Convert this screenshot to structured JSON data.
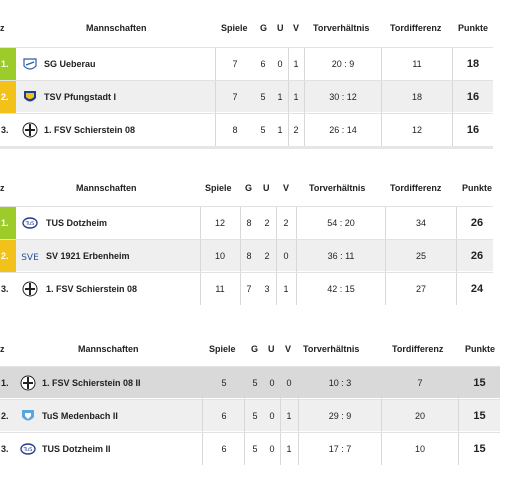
{
  "tables": [
    {
      "headers": {
        "rank": "z",
        "team": "Mannschaften",
        "games": "Spiele",
        "g": "G",
        "u": "U",
        "v": "V",
        "goals": "Torverhältnis",
        "diff": "Tordifferenz",
        "points": "Punkte"
      },
      "rows": [
        {
          "rank": "1.",
          "team": "SG Ueberau",
          "games": "7",
          "g": "6",
          "u": "0",
          "v": "1",
          "goals": "20 : 9",
          "diff": "11",
          "points": "18"
        },
        {
          "rank": "2.",
          "team": "TSV Pfungstadt I",
          "games": "7",
          "g": "5",
          "u": "1",
          "v": "1",
          "goals": "30 : 12",
          "diff": "18",
          "points": "16"
        },
        {
          "rank": "3.",
          "team": "1. FSV Schierstein 08",
          "games": "8",
          "g": "5",
          "u": "1",
          "v": "2",
          "goals": "26 : 14",
          "diff": "12",
          "points": "16"
        }
      ]
    },
    {
      "headers": {
        "rank": "z",
        "team": "Mannschaften",
        "games": "Spiele",
        "g": "G",
        "u": "U",
        "v": "V",
        "goals": "Torverhältnis",
        "diff": "Tordifferenz",
        "points": "Punkte"
      },
      "rows": [
        {
          "rank": "1.",
          "team": "TUS Dotzheim",
          "games": "12",
          "g": "8",
          "u": "2",
          "v": "2",
          "goals": "54 : 20",
          "diff": "34",
          "points": "26"
        },
        {
          "rank": "2.",
          "team": "SV 1921 Erbenheim",
          "games": "10",
          "g": "8",
          "u": "2",
          "v": "0",
          "goals": "36 : 11",
          "diff": "25",
          "points": "26"
        },
        {
          "rank": "3.",
          "team": "1. FSV Schierstein 08",
          "games": "11",
          "g": "7",
          "u": "3",
          "v": "1",
          "goals": "42 : 15",
          "diff": "27",
          "points": "24"
        }
      ]
    },
    {
      "headers": {
        "rank": "z",
        "team": "Mannschaften",
        "games": "Spiele",
        "g": "G",
        "u": "U",
        "v": "V",
        "goals": "Torverhältnis",
        "diff": "Tordifferenz",
        "points": "Punkte"
      },
      "rows": [
        {
          "rank": "1.",
          "team": "1. FSV Schierstein 08 II",
          "games": "5",
          "g": "5",
          "u": "0",
          "v": "0",
          "goals": "10 : 3",
          "diff": "7",
          "points": "15"
        },
        {
          "rank": "2.",
          "team": "TuS Medenbach II",
          "games": "6",
          "g": "5",
          "u": "0",
          "v": "1",
          "goals": "29 : 9",
          "diff": "20",
          "points": "15"
        },
        {
          "rank": "3.",
          "team": "TUS Dotzheim II",
          "games": "6",
          "g": "5",
          "u": "0",
          "v": "1",
          "goals": "17 : 7",
          "diff": "10",
          "points": "15"
        }
      ]
    }
  ],
  "logos": {
    "t0r0": "ueberau-logo-icon",
    "t0r1": "tsv-pfungstadt-logo-icon",
    "t0r2": "fsv-schierstein-logo-icon",
    "t1r0": "tus-dotzheim-logo-icon",
    "t1r1": "sv-erbenheim-logo-icon",
    "t1r2": "fsv-schierstein-logo-icon",
    "t2r0": "fsv-schierstein-logo-icon",
    "t2r1": "tus-medenbach-logo-icon",
    "t2r2": "tus-dotzheim-logo-icon"
  },
  "logo_text": {
    "sv_erbenheim": "SVE"
  },
  "colors": {
    "first_place": "#9ccc2a",
    "second_place": "#f2c21b",
    "highlight_row": "#d9d9d9",
    "stripe_row": "#efefef"
  }
}
